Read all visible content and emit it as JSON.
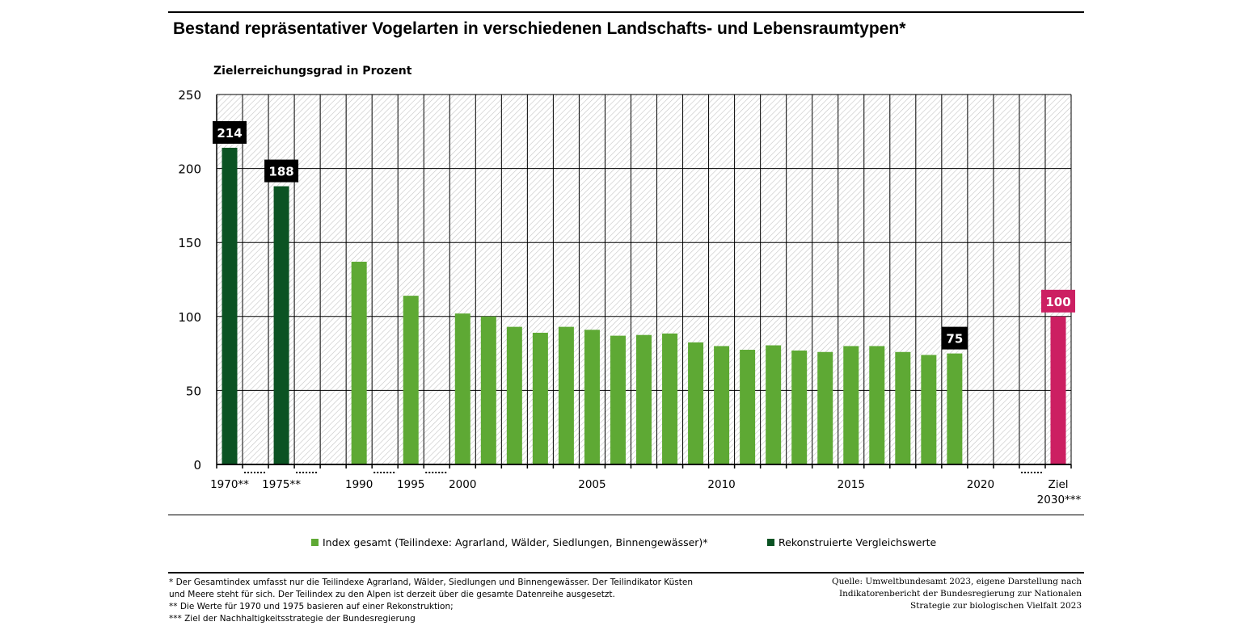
{
  "title": "Bestand repräsentativer Vogelarten in verschiedenen Landschafts- und Lebensraumtypen*",
  "y_axis_title": "Zielerreichungsgrad in Prozent",
  "colors": {
    "index": "#5ea934",
    "reconstructed": "#0b5323",
    "target": "#cc1f62",
    "label_black": "#000000"
  },
  "chart_data": {
    "type": "bar",
    "ylabel": "Zielerreichungsgrad in Prozent",
    "ylim": [
      0,
      250
    ],
    "yticks": [
      0,
      50,
      100,
      150,
      200,
      250
    ],
    "grid": true,
    "hatched_background": true,
    "slots": [
      "1970",
      "1971-1974",
      "1975",
      "1976-1989",
      "1989",
      "1990",
      "1991-1994",
      "1995",
      "1996-1999",
      "2000",
      "2001",
      "2002",
      "2003",
      "2004",
      "2005",
      "2006",
      "2007",
      "2008",
      "2009",
      "2010",
      "2011",
      "2012",
      "2013",
      "2014",
      "2015",
      "2016",
      "2017",
      "2018",
      "2019",
      "2020",
      "2021",
      "2022",
      "2030"
    ],
    "x_tick_labels": [
      {
        "slot": 0,
        "text": "1970**"
      },
      {
        "slot": 2,
        "text": "1975**"
      },
      {
        "slot": 5,
        "text": "1990"
      },
      {
        "slot": 7,
        "text": "1995"
      },
      {
        "slot": 9,
        "text": "2000"
      },
      {
        "slot": 14,
        "text": "2005"
      },
      {
        "slot": 19,
        "text": "2010"
      },
      {
        "slot": 24,
        "text": "2015"
      },
      {
        "slot": 29,
        "text": "2020"
      },
      {
        "slot": 32,
        "text": "Ziel",
        "text2": "2030***"
      }
    ],
    "axis_gaps": [
      1,
      3,
      6,
      8,
      31
    ],
    "series": [
      {
        "name": "Rekonstruierte Vergleichswerte",
        "color_key": "reconstructed",
        "points": [
          {
            "year": "1970",
            "slot": 0,
            "value": 214
          },
          {
            "year": "1975",
            "slot": 2,
            "value": 188
          }
        ]
      },
      {
        "name": "Index gesamt (Teilindexe: Agrarland, Wälder, Siedlungen, Binnengewässer)*",
        "color_key": "index",
        "points": [
          {
            "year": "1990",
            "slot": 5,
            "value": 137
          },
          {
            "year": "1995",
            "slot": 7,
            "value": 114
          },
          {
            "year": "2000",
            "slot": 9,
            "value": 102
          },
          {
            "year": "2001",
            "slot": 10,
            "value": 100
          },
          {
            "year": "2002",
            "slot": 11,
            "value": 93
          },
          {
            "year": "2003",
            "slot": 12,
            "value": 89
          },
          {
            "year": "2004",
            "slot": 13,
            "value": 93
          },
          {
            "year": "2005",
            "slot": 14,
            "value": 91
          },
          {
            "year": "2006",
            "slot": 15,
            "value": 87
          },
          {
            "year": "2007",
            "slot": 16,
            "value": 87.5
          },
          {
            "year": "2008",
            "slot": 17,
            "value": 88.5
          },
          {
            "year": "2009",
            "slot": 18,
            "value": 82.5
          },
          {
            "year": "2010",
            "slot": 19,
            "value": 80
          },
          {
            "year": "2011",
            "slot": 20,
            "value": 77.5
          },
          {
            "year": "2012",
            "slot": 21,
            "value": 80.5
          },
          {
            "year": "2013",
            "slot": 22,
            "value": 77
          },
          {
            "year": "2014",
            "slot": 23,
            "value": 76
          },
          {
            "year": "2015",
            "slot": 24,
            "value": 80
          },
          {
            "year": "2016",
            "slot": 25,
            "value": 80
          },
          {
            "year": "2017",
            "slot": 26,
            "value": 76
          },
          {
            "year": "2018",
            "slot": 27,
            "value": 74
          },
          {
            "year": "2019",
            "slot": 28,
            "value": 75
          }
        ]
      },
      {
        "name": "Ziel 2030",
        "color_key": "target",
        "points": [
          {
            "year": "2030",
            "slot": 32,
            "value": 100
          }
        ]
      }
    ],
    "data_labels": [
      {
        "slot": 0,
        "value": 214,
        "text": "214",
        "color_key": "label_black"
      },
      {
        "slot": 2,
        "value": 188,
        "text": "188",
        "color_key": "label_black"
      },
      {
        "slot": 28,
        "value": 75,
        "text": "75",
        "color_key": "label_black"
      },
      {
        "slot": 32,
        "value": 100,
        "text": "100",
        "color_key": "target"
      }
    ]
  },
  "legend": [
    {
      "label": "Index gesamt (Teilindexe: Agrarland, Wälder, Siedlungen, Binnengewässer)*",
      "color_key": "index"
    },
    {
      "label": "Rekonstruierte Vergleichswerte",
      "color_key": "reconstructed"
    }
  ],
  "footnotes": [
    "* Der Gesamtindex umfasst nur die Teilindexe Agrarland, Wälder, Siedlungen und Binnengewässer. Der Teilindikator Küsten",
    "und Meere steht für sich. Der Teilindex zu den Alpen ist derzeit über die gesamte Datenreihe ausgesetzt.",
    "** Die Werte für 1970 und 1975 basieren auf einer Rekonstruktion;",
    "*** Ziel der Nachhaltigkeitsstrategie der Bundesregierung"
  ],
  "source": [
    "Quelle: Umweltbundesamt 2023, eigene Darstellung nach",
    "Indikatorenbericht der Bundesregierung zur Nationalen",
    "Strategie zur biologischen Vielfalt 2023"
  ]
}
